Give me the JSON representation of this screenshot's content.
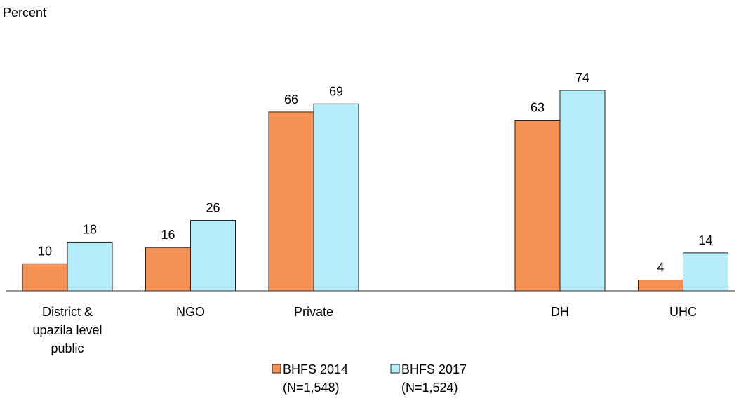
{
  "chart_data": {
    "type": "bar",
    "y_label": "Percent",
    "categories": [
      "District &\nupazila level\npublic",
      "NGO",
      "Private",
      null,
      "DH",
      "UHC"
    ],
    "series": [
      {
        "name": "BHFS 2014\n(N=1,548)",
        "color": "#f79256",
        "values": [
          10,
          16,
          66,
          null,
          63,
          4
        ]
      },
      {
        "name": "BHFS 2017\n(N=1,524)",
        "color": "#b5eefa",
        "values": [
          18,
          26,
          69,
          null,
          74,
          14
        ]
      }
    ],
    "ylim": [
      0,
      100
    ],
    "grid": false,
    "legend": "bottom"
  }
}
